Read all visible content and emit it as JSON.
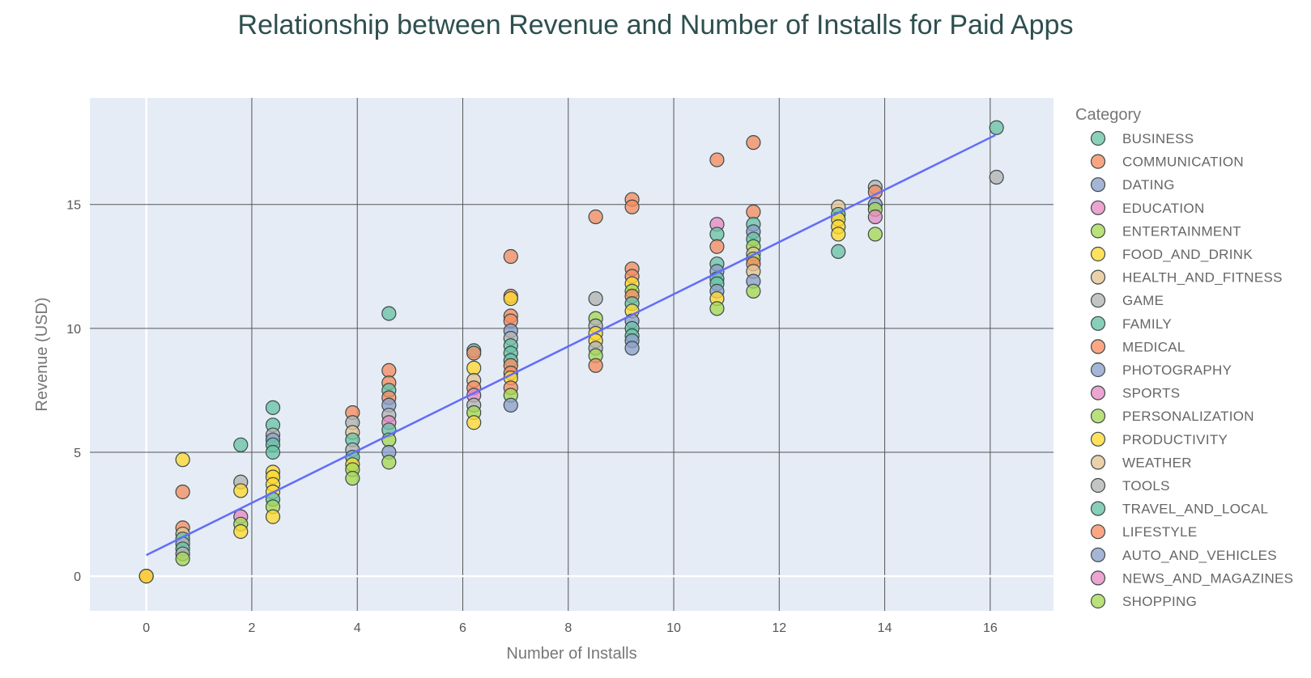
{
  "chart_data": {
    "type": "scatter",
    "title": "Relationship between Revenue and Number of Installs for Paid Apps",
    "xlabel": "Number of Installs",
    "ylabel": "Revenue (USD)",
    "xlim": [
      -1.07,
      17.2
    ],
    "ylim": [
      -1.4,
      19.3
    ],
    "x_ticks": [
      0,
      2,
      4,
      6,
      8,
      10,
      12,
      14,
      16
    ],
    "y_ticks": [
      0,
      5,
      10,
      15
    ],
    "grid": true,
    "legend_title": "Category",
    "legend_position": "right",
    "trendline": {
      "x": [
        0,
        16.1
      ],
      "y": [
        0.85,
        17.8
      ]
    },
    "categories": [
      {
        "name": "BUSINESS",
        "color": "#6cc3a6"
      },
      {
        "name": "COMMUNICATION",
        "color": "#f58d62"
      },
      {
        "name": "DATING",
        "color": "#8da0cb"
      },
      {
        "name": "EDUCATION",
        "color": "#e78ac3"
      },
      {
        "name": "ENTERTAINMENT",
        "color": "#a6d854"
      },
      {
        "name": "FOOD_AND_DRINK",
        "color": "#ffd92f"
      },
      {
        "name": "HEALTH_AND_FITNESS",
        "color": "#e5c494"
      },
      {
        "name": "GAME",
        "color": "#b3b3b3"
      },
      {
        "name": "FAMILY",
        "color": "#66c2a5"
      },
      {
        "name": "MEDICAL",
        "color": "#fc8d62"
      },
      {
        "name": "PHOTOGRAPHY",
        "color": "#8da0cb"
      },
      {
        "name": "SPORTS",
        "color": "#e78ac3"
      },
      {
        "name": "PERSONALIZATION",
        "color": "#a6d854"
      },
      {
        "name": "PRODUCTIVITY",
        "color": "#ffd92f"
      },
      {
        "name": "WEATHER",
        "color": "#e5c494"
      },
      {
        "name": "TOOLS",
        "color": "#b3b3b3"
      },
      {
        "name": "TRAVEL_AND_LOCAL",
        "color": "#66c2a5"
      },
      {
        "name": "LIFESTYLE",
        "color": "#fc8d62"
      },
      {
        "name": "AUTO_AND_VEHICLES",
        "color": "#8da0cb"
      },
      {
        "name": "NEWS_AND_MAGAZINES",
        "color": "#e78ac3"
      },
      {
        "name": "SHOPPING",
        "color": "#a6d854"
      }
    ],
    "points": [
      {
        "x": 0,
        "y": 0,
        "c": 1
      },
      {
        "x": 0,
        "y": 0,
        "c": 5
      },
      {
        "x": 0.69,
        "y": 4.7,
        "c": 5
      },
      {
        "x": 0.69,
        "y": 3.4,
        "c": 1
      },
      {
        "x": 0.69,
        "y": 1.95,
        "c": 1
      },
      {
        "x": 0.69,
        "y": 1.7,
        "c": 6
      },
      {
        "x": 0.69,
        "y": 1.5,
        "c": 0
      },
      {
        "x": 0.69,
        "y": 1.3,
        "c": 7
      },
      {
        "x": 0.69,
        "y": 1.1,
        "c": 0
      },
      {
        "x": 0.69,
        "y": 0.9,
        "c": 7
      },
      {
        "x": 0.69,
        "y": 0.7,
        "c": 4
      },
      {
        "x": 1.79,
        "y": 5.3,
        "c": 0
      },
      {
        "x": 1.79,
        "y": 3.8,
        "c": 7
      },
      {
        "x": 1.79,
        "y": 3.45,
        "c": 5
      },
      {
        "x": 1.79,
        "y": 2.4,
        "c": 3
      },
      {
        "x": 1.79,
        "y": 2.1,
        "c": 4
      },
      {
        "x": 1.79,
        "y": 1.8,
        "c": 5
      },
      {
        "x": 2.4,
        "y": 6.8,
        "c": 0
      },
      {
        "x": 2.4,
        "y": 6.1,
        "c": 0
      },
      {
        "x": 2.4,
        "y": 5.7,
        "c": 7
      },
      {
        "x": 2.4,
        "y": 5.5,
        "c": 2
      },
      {
        "x": 2.4,
        "y": 5.3,
        "c": 0
      },
      {
        "x": 2.4,
        "y": 5.0,
        "c": 0
      },
      {
        "x": 2.4,
        "y": 4.2,
        "c": 5
      },
      {
        "x": 2.4,
        "y": 4.0,
        "c": 5
      },
      {
        "x": 2.4,
        "y": 3.7,
        "c": 5
      },
      {
        "x": 2.4,
        "y": 3.4,
        "c": 5
      },
      {
        "x": 2.4,
        "y": 3.1,
        "c": 0
      },
      {
        "x": 2.4,
        "y": 2.8,
        "c": 4
      },
      {
        "x": 2.4,
        "y": 2.4,
        "c": 5
      },
      {
        "x": 3.91,
        "y": 6.6,
        "c": 1
      },
      {
        "x": 3.91,
        "y": 6.2,
        "c": 7
      },
      {
        "x": 3.91,
        "y": 5.8,
        "c": 6
      },
      {
        "x": 3.91,
        "y": 5.5,
        "c": 0
      },
      {
        "x": 3.91,
        "y": 5.1,
        "c": 7
      },
      {
        "x": 3.91,
        "y": 4.8,
        "c": 0
      },
      {
        "x": 3.91,
        "y": 4.5,
        "c": 5
      },
      {
        "x": 3.91,
        "y": 4.3,
        "c": 4
      },
      {
        "x": 3.91,
        "y": 3.95,
        "c": 4
      },
      {
        "x": 4.6,
        "y": 10.6,
        "c": 0
      },
      {
        "x": 4.6,
        "y": 8.3,
        "c": 1
      },
      {
        "x": 4.6,
        "y": 7.8,
        "c": 1
      },
      {
        "x": 4.6,
        "y": 7.5,
        "c": 0
      },
      {
        "x": 4.6,
        "y": 7.2,
        "c": 1
      },
      {
        "x": 4.6,
        "y": 6.9,
        "c": 2
      },
      {
        "x": 4.6,
        "y": 6.5,
        "c": 7
      },
      {
        "x": 4.6,
        "y": 6.2,
        "c": 3
      },
      {
        "x": 4.6,
        "y": 5.9,
        "c": 0
      },
      {
        "x": 4.6,
        "y": 5.5,
        "c": 4
      },
      {
        "x": 4.6,
        "y": 5.0,
        "c": 2
      },
      {
        "x": 4.6,
        "y": 4.6,
        "c": 4
      },
      {
        "x": 6.21,
        "y": 9.1,
        "c": 0
      },
      {
        "x": 6.21,
        "y": 9.0,
        "c": 1
      },
      {
        "x": 6.21,
        "y": 8.4,
        "c": 5
      },
      {
        "x": 6.21,
        "y": 7.9,
        "c": 6
      },
      {
        "x": 6.21,
        "y": 7.6,
        "c": 1
      },
      {
        "x": 6.21,
        "y": 7.3,
        "c": 3
      },
      {
        "x": 6.21,
        "y": 6.9,
        "c": 7
      },
      {
        "x": 6.21,
        "y": 6.6,
        "c": 4
      },
      {
        "x": 6.21,
        "y": 6.2,
        "c": 5
      },
      {
        "x": 6.91,
        "y": 12.9,
        "c": 1
      },
      {
        "x": 6.91,
        "y": 11.3,
        "c": 1
      },
      {
        "x": 6.91,
        "y": 11.2,
        "c": 5
      },
      {
        "x": 6.91,
        "y": 10.5,
        "c": 1
      },
      {
        "x": 6.91,
        "y": 10.3,
        "c": 1
      },
      {
        "x": 6.91,
        "y": 9.9,
        "c": 2
      },
      {
        "x": 6.91,
        "y": 9.6,
        "c": 7
      },
      {
        "x": 6.91,
        "y": 9.3,
        "c": 0
      },
      {
        "x": 6.91,
        "y": 9.0,
        "c": 0
      },
      {
        "x": 6.91,
        "y": 8.7,
        "c": 0
      },
      {
        "x": 6.91,
        "y": 8.5,
        "c": 1
      },
      {
        "x": 6.91,
        "y": 8.2,
        "c": 1
      },
      {
        "x": 6.91,
        "y": 8.0,
        "c": 5
      },
      {
        "x": 6.91,
        "y": 7.6,
        "c": 1
      },
      {
        "x": 6.91,
        "y": 7.3,
        "c": 4
      },
      {
        "x": 6.91,
        "y": 6.9,
        "c": 2
      },
      {
        "x": 8.52,
        "y": 14.5,
        "c": 1
      },
      {
        "x": 8.52,
        "y": 11.2,
        "c": 7
      },
      {
        "x": 8.52,
        "y": 10.4,
        "c": 4
      },
      {
        "x": 8.52,
        "y": 10.1,
        "c": 7
      },
      {
        "x": 8.52,
        "y": 9.8,
        "c": 5
      },
      {
        "x": 8.52,
        "y": 9.5,
        "c": 5
      },
      {
        "x": 8.52,
        "y": 9.2,
        "c": 7
      },
      {
        "x": 8.52,
        "y": 8.9,
        "c": 4
      },
      {
        "x": 8.52,
        "y": 8.5,
        "c": 1
      },
      {
        "x": 9.21,
        "y": 15.2,
        "c": 1
      },
      {
        "x": 9.21,
        "y": 14.9,
        "c": 1
      },
      {
        "x": 9.21,
        "y": 12.4,
        "c": 1
      },
      {
        "x": 9.21,
        "y": 12.1,
        "c": 1
      },
      {
        "x": 9.21,
        "y": 11.8,
        "c": 5
      },
      {
        "x": 9.21,
        "y": 11.5,
        "c": 4
      },
      {
        "x": 9.21,
        "y": 11.3,
        "c": 1
      },
      {
        "x": 9.21,
        "y": 11.0,
        "c": 0
      },
      {
        "x": 9.21,
        "y": 10.7,
        "c": 5
      },
      {
        "x": 9.21,
        "y": 10.3,
        "c": 2
      },
      {
        "x": 9.21,
        "y": 10.0,
        "c": 0
      },
      {
        "x": 9.21,
        "y": 9.7,
        "c": 0
      },
      {
        "x": 9.21,
        "y": 9.5,
        "c": 2
      },
      {
        "x": 9.21,
        "y": 9.2,
        "c": 2
      },
      {
        "x": 10.82,
        "y": 16.8,
        "c": 1
      },
      {
        "x": 10.82,
        "y": 14.2,
        "c": 3
      },
      {
        "x": 10.82,
        "y": 13.8,
        "c": 0
      },
      {
        "x": 10.82,
        "y": 13.3,
        "c": 1
      },
      {
        "x": 10.82,
        "y": 12.6,
        "c": 0
      },
      {
        "x": 10.82,
        "y": 12.3,
        "c": 2
      },
      {
        "x": 10.82,
        "y": 12.0,
        "c": 0
      },
      {
        "x": 10.82,
        "y": 11.8,
        "c": 0
      },
      {
        "x": 10.82,
        "y": 11.5,
        "c": 2
      },
      {
        "x": 10.82,
        "y": 11.2,
        "c": 5
      },
      {
        "x": 10.82,
        "y": 10.8,
        "c": 4
      },
      {
        "x": 11.51,
        "y": 17.5,
        "c": 1
      },
      {
        "x": 11.51,
        "y": 14.7,
        "c": 1
      },
      {
        "x": 11.51,
        "y": 14.2,
        "c": 0
      },
      {
        "x": 11.51,
        "y": 13.9,
        "c": 2
      },
      {
        "x": 11.51,
        "y": 13.6,
        "c": 0
      },
      {
        "x": 11.51,
        "y": 13.3,
        "c": 4
      },
      {
        "x": 11.51,
        "y": 13.0,
        "c": 6
      },
      {
        "x": 11.51,
        "y": 12.8,
        "c": 4
      },
      {
        "x": 11.51,
        "y": 12.6,
        "c": 1
      },
      {
        "x": 11.51,
        "y": 12.3,
        "c": 6
      },
      {
        "x": 11.51,
        "y": 11.9,
        "c": 2
      },
      {
        "x": 11.51,
        "y": 11.5,
        "c": 4
      },
      {
        "x": 13.12,
        "y": 14.9,
        "c": 6
      },
      {
        "x": 13.12,
        "y": 14.6,
        "c": 0
      },
      {
        "x": 13.12,
        "y": 14.4,
        "c": 5
      },
      {
        "x": 13.12,
        "y": 14.1,
        "c": 5
      },
      {
        "x": 13.12,
        "y": 13.8,
        "c": 5
      },
      {
        "x": 13.12,
        "y": 13.1,
        "c": 0
      },
      {
        "x": 13.82,
        "y": 15.7,
        "c": 7
      },
      {
        "x": 13.82,
        "y": 15.5,
        "c": 1
      },
      {
        "x": 13.82,
        "y": 15.0,
        "c": 2
      },
      {
        "x": 13.82,
        "y": 14.8,
        "c": 4
      },
      {
        "x": 13.82,
        "y": 14.5,
        "c": 3
      },
      {
        "x": 13.82,
        "y": 13.8,
        "c": 4
      },
      {
        "x": 16.12,
        "y": 18.1,
        "c": 0
      },
      {
        "x": 16.12,
        "y": 16.1,
        "c": 7
      }
    ]
  }
}
